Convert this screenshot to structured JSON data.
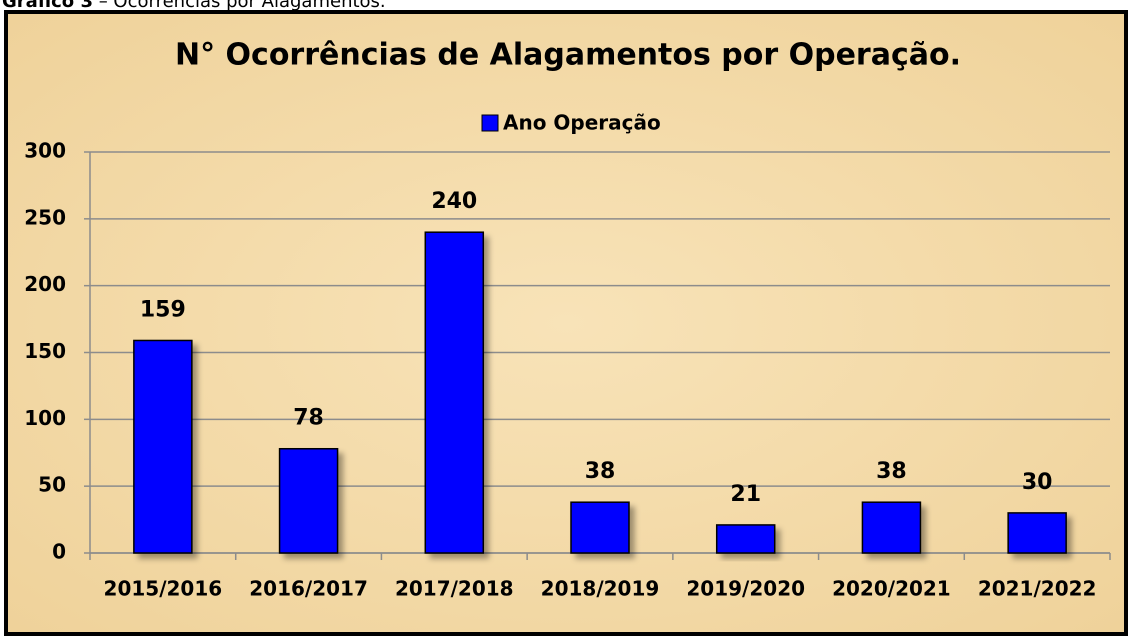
{
  "caption": {
    "label": "Gráfico 3",
    "text": "– Ocorrências por Alagamentos."
  },
  "chart_data": {
    "type": "bar",
    "title": "N° Ocorrências de Alagamentos por Operação.",
    "categories": [
      "2015/2016",
      "2016/2017",
      "2017/2018",
      "2018/2019",
      "2019/2020",
      "2020/2021",
      "2021/2022"
    ],
    "series": [
      {
        "name": "Ano Operação",
        "color": "#0000ff",
        "values": [
          159,
          78,
          240,
          38,
          21,
          38,
          30
        ]
      }
    ],
    "ylim": [
      0,
      300
    ],
    "yticks": [
      0,
      50,
      100,
      150,
      200,
      250,
      300
    ],
    "grid": true,
    "legend": "top"
  }
}
